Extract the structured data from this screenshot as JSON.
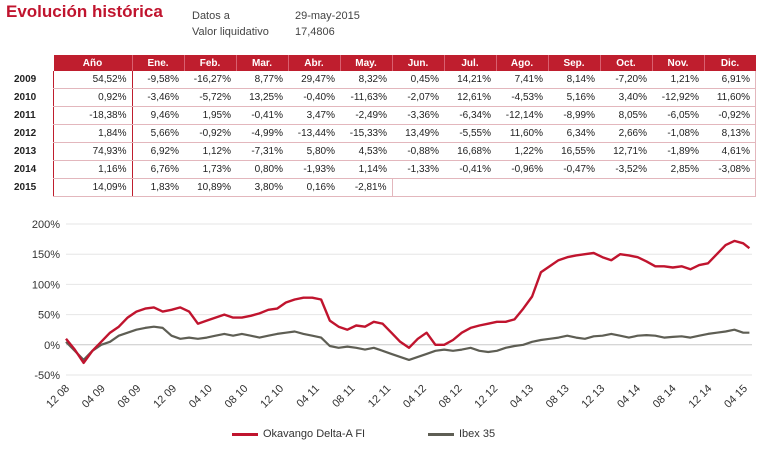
{
  "header": {
    "title": "Evolución histórica",
    "date_label": "Datos a",
    "date_value": "29-may-2015",
    "nav_label": "Valor liquidativo",
    "nav_value": "17,4806"
  },
  "table": {
    "headers": [
      "Año",
      "Ene.",
      "Feb.",
      "Mar.",
      "Abr.",
      "May.",
      "Jun.",
      "Jul.",
      "Ago.",
      "Sep.",
      "Oct.",
      "Nov.",
      "Dic."
    ],
    "rows": [
      {
        "year": "2009",
        "cells": [
          "54,52%",
          "-9,58%",
          "-16,27%",
          "8,77%",
          "29,47%",
          "8,32%",
          "0,45%",
          "14,21%",
          "7,41%",
          "8,14%",
          "-7,20%",
          "1,21%",
          "6,91%"
        ]
      },
      {
        "year": "2010",
        "cells": [
          "0,92%",
          "-3,46%",
          "-5,72%",
          "13,25%",
          "-0,40%",
          "-11,63%",
          "-2,07%",
          "12,61%",
          "-4,53%",
          "5,16%",
          "3,40%",
          "-12,92%",
          "11,60%"
        ]
      },
      {
        "year": "2011",
        "cells": [
          "-18,38%",
          "9,46%",
          "1,95%",
          "-0,41%",
          "3,47%",
          "-2,49%",
          "-3,36%",
          "-6,34%",
          "-12,14%",
          "-8,99%",
          "8,05%",
          "-6,05%",
          "-0,92%"
        ]
      },
      {
        "year": "2012",
        "cells": [
          "1,84%",
          "5,66%",
          "-0,92%",
          "-4,99%",
          "-13,44%",
          "-15,33%",
          "13,49%",
          "-5,55%",
          "11,60%",
          "6,34%",
          "2,66%",
          "-1,08%",
          "8,13%"
        ]
      },
      {
        "year": "2013",
        "cells": [
          "74,93%",
          "6,92%",
          "1,12%",
          "-7,31%",
          "5,80%",
          "4,53%",
          "-0,88%",
          "16,68%",
          "1,22%",
          "16,55%",
          "12,71%",
          "-1,89%",
          "4,61%"
        ]
      },
      {
        "year": "2014",
        "cells": [
          "1,16%",
          "6,76%",
          "1,73%",
          "0,80%",
          "-1,93%",
          "1,14%",
          "-1,33%",
          "-0,41%",
          "-0,96%",
          "-0,47%",
          "-3,52%",
          "2,85%",
          "-3,08%"
        ]
      },
      {
        "year": "2015",
        "cells": [
          "14,09%",
          "1,83%",
          "10,89%",
          "3,80%",
          "0,16%",
          "-2,81%",
          "",
          "",
          "",
          "",
          "",
          "",
          ""
        ]
      }
    ]
  },
  "chart_data": {
    "type": "line",
    "ylim": [
      -50,
      200
    ],
    "y_ticks": [
      "200%",
      "150%",
      "100%",
      "50%",
      "0%",
      "-50%"
    ],
    "y_tick_values": [
      200,
      150,
      100,
      50,
      0,
      -50
    ],
    "x_ticks": [
      "12 08",
      "04 09",
      "08 09",
      "12 09",
      "04 10",
      "08 10",
      "12 10",
      "04 11",
      "08 11",
      "12 11",
      "04 12",
      "08 12",
      "12 12",
      "04 13",
      "08 13",
      "12 13",
      "04 14",
      "08 14",
      "12 14",
      "04 15"
    ],
    "x_range": [
      0,
      78
    ],
    "grid": true,
    "legend_position": "bottom",
    "series": [
      {
        "name": "Okavango Delta-A FI",
        "color": "#c0142e",
        "x": [
          0,
          1,
          2,
          3,
          4,
          5,
          6,
          7,
          8,
          9,
          10,
          11,
          12,
          13,
          14,
          15,
          16,
          17,
          18,
          19,
          20,
          21,
          22,
          23,
          24,
          25,
          26,
          27,
          28,
          29,
          30,
          31,
          32,
          33,
          34,
          35,
          36,
          37,
          38,
          39,
          40,
          41,
          42,
          43,
          44,
          45,
          46,
          47,
          48,
          49,
          50,
          51,
          52,
          53,
          54,
          55,
          56,
          57,
          58,
          59,
          60,
          61,
          62,
          63,
          64,
          65,
          66,
          67,
          68,
          69,
          70,
          71,
          72,
          73,
          74,
          75,
          76,
          77,
          77.7
        ],
        "y": [
          10,
          -8,
          -30,
          -10,
          5,
          20,
          30,
          45,
          55,
          60,
          62,
          55,
          58,
          62,
          55,
          35,
          40,
          45,
          50,
          45,
          45,
          48,
          52,
          58,
          60,
          70,
          75,
          78,
          78,
          75,
          40,
          30,
          25,
          32,
          30,
          38,
          35,
          20,
          5,
          -5,
          10,
          20,
          0,
          0,
          8,
          20,
          28,
          32,
          35,
          38,
          38,
          42,
          60,
          80,
          120,
          130,
          140,
          145,
          148,
          150,
          152,
          145,
          140,
          150,
          148,
          145,
          138,
          130,
          130,
          128,
          130,
          125,
          132,
          135,
          150,
          165,
          172,
          168,
          160
        ]
      },
      {
        "name": "Ibex 35",
        "color": "#5e5e54",
        "x": [
          0,
          1,
          2,
          3,
          4,
          5,
          6,
          7,
          8,
          9,
          10,
          11,
          12,
          13,
          14,
          15,
          16,
          17,
          18,
          19,
          20,
          21,
          22,
          23,
          24,
          25,
          26,
          27,
          28,
          29,
          30,
          31,
          32,
          33,
          34,
          35,
          36,
          37,
          38,
          39,
          40,
          41,
          42,
          43,
          44,
          45,
          46,
          47,
          48,
          49,
          50,
          51,
          52,
          53,
          54,
          55,
          56,
          57,
          58,
          59,
          60,
          61,
          62,
          63,
          64,
          65,
          66,
          67,
          68,
          69,
          70,
          71,
          72,
          73,
          74,
          75,
          76,
          77,
          77.7
        ],
        "y": [
          5,
          -10,
          -25,
          -10,
          0,
          5,
          15,
          20,
          25,
          28,
          30,
          28,
          15,
          10,
          12,
          10,
          12,
          15,
          18,
          15,
          18,
          15,
          12,
          15,
          18,
          20,
          22,
          18,
          15,
          12,
          -2,
          -5,
          -3,
          -5,
          -8,
          -5,
          -10,
          -15,
          -20,
          -25,
          -20,
          -15,
          -10,
          -8,
          -10,
          -8,
          -5,
          -10,
          -12,
          -10,
          -5,
          -2,
          0,
          5,
          8,
          10,
          12,
          15,
          12,
          10,
          14,
          15,
          18,
          15,
          12,
          15,
          16,
          15,
          12,
          13,
          14,
          12,
          15,
          18,
          20,
          22,
          25,
          20,
          20
        ]
      }
    ]
  }
}
